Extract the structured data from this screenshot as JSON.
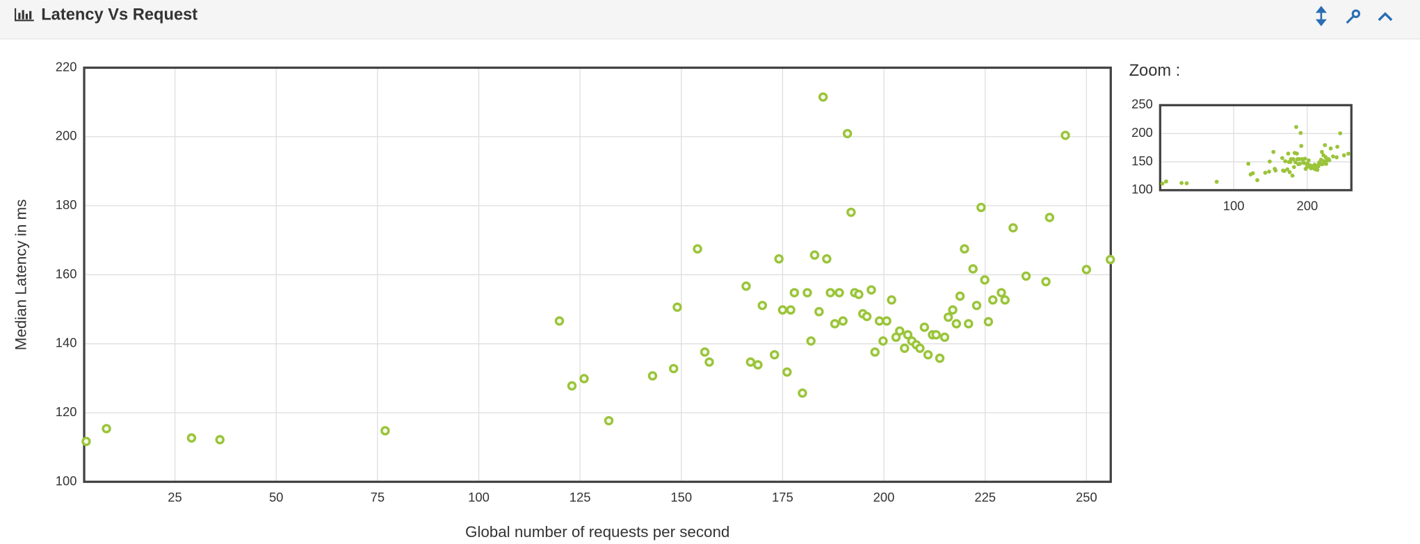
{
  "header": {
    "title": "Latency Vs Request"
  },
  "chart_data": [
    {
      "type": "scatter",
      "xlabel": "Global number of requests per second",
      "ylabel": "Median Latency in ms",
      "color": "#9ac43a",
      "grid": true,
      "xlim": [
        2.6,
        256
      ],
      "ylim": [
        100,
        220
      ],
      "xticks": [
        25,
        50,
        75,
        100,
        125,
        150,
        175,
        200,
        225,
        250
      ],
      "yticks": [
        100,
        120,
        140,
        160,
        180,
        200,
        220
      ],
      "x": [
        3.1,
        8.1,
        29.1,
        36.1,
        76.9,
        119.9,
        123.0,
        126.0,
        132.1,
        142.9,
        148.1,
        149.0,
        154.0,
        155.8,
        156.9,
        166.0,
        167.1,
        168.9,
        170.0,
        173.0,
        174.1,
        175.0,
        176.1,
        177.0,
        177.9,
        179.9,
        181.1,
        182.0,
        182.9,
        184.0,
        185.0,
        185.9,
        186.8,
        187.9,
        189.0,
        189.9,
        191.0,
        191.9,
        192.8,
        193.8,
        194.8,
        195.8,
        196.9,
        197.8,
        198.9,
        199.8,
        200.7,
        201.9,
        203.0,
        203.9,
        205.1,
        205.9,
        206.9,
        208.0,
        208.9,
        210.0,
        210.9,
        212.0,
        212.9,
        213.8,
        215.0,
        215.9,
        217.0,
        217.9,
        218.8,
        219.9,
        220.9,
        222.0,
        222.9,
        224.0,
        224.9,
        225.8,
        226.9,
        229.0,
        229.9,
        231.9,
        235.1,
        240.0,
        240.9,
        244.8,
        250.0,
        255.9
      ],
      "values": [
        111.7,
        115.4,
        112.7,
        112.2,
        114.8,
        146.6,
        127.8,
        129.9,
        117.7,
        130.7,
        132.8,
        150.6,
        167.5,
        137.6,
        134.7,
        156.7,
        134.7,
        133.9,
        151.1,
        136.8,
        164.6,
        149.8,
        131.8,
        149.8,
        154.8,
        125.7,
        154.8,
        140.8,
        165.7,
        149.3,
        211.5,
        164.6,
        154.8,
        145.8,
        154.8,
        146.6,
        200.9,
        178.1,
        154.8,
        154.3,
        148.7,
        147.9,
        155.6,
        137.6,
        146.6,
        140.8,
        146.6,
        152.7,
        141.9,
        143.7,
        138.7,
        142.6,
        140.8,
        139.7,
        138.7,
        144.8,
        136.8,
        142.6,
        142.6,
        135.8,
        141.9,
        147.7,
        149.8,
        145.8,
        153.8,
        167.5,
        145.8,
        161.7,
        151.1,
        179.5,
        158.5,
        146.4,
        152.7,
        154.8,
        152.7,
        173.6,
        159.6,
        158.0,
        176.6,
        200.4,
        161.5,
        164.4
      ]
    },
    {
      "type": "scatter",
      "title": "Zoom :",
      "xlim": [
        0,
        260
      ],
      "ylim": [
        100,
        250
      ],
      "xticks": [
        100,
        200
      ],
      "yticks": [
        100,
        150,
        200,
        250
      ]
    }
  ]
}
